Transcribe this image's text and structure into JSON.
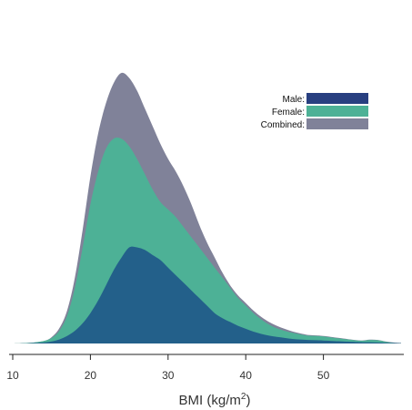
{
  "chart_data": {
    "type": "area",
    "xlabel": "BMI (kg/m",
    "xlabel_sup": "2",
    "xlabel_close": ")",
    "xlim": [
      10,
      60
    ],
    "xticks": [
      "10",
      "20",
      "30",
      "40",
      "50"
    ],
    "legend_position": "top-right",
    "x": [
      10,
      12,
      14,
      15,
      16,
      17,
      18,
      19,
      20,
      21,
      22,
      23,
      24,
      25,
      26,
      27,
      28,
      29,
      30,
      31,
      32,
      33,
      34,
      35,
      36,
      37,
      38,
      39,
      40,
      41,
      42,
      43,
      44,
      45,
      46,
      47,
      48,
      49,
      50,
      52,
      54,
      55,
      56,
      57,
      58,
      59,
      60
    ],
    "series": [
      {
        "name": "Combined",
        "color": "#808299",
        "values": [
          0,
          0.002,
          0.01,
          0.025,
          0.06,
          0.13,
          0.26,
          0.45,
          0.66,
          0.83,
          0.95,
          1.03,
          1.07,
          1.05,
          1.0,
          0.93,
          0.86,
          0.79,
          0.73,
          0.68,
          0.62,
          0.55,
          0.47,
          0.4,
          0.34,
          0.28,
          0.23,
          0.19,
          0.16,
          0.13,
          0.105,
          0.085,
          0.07,
          0.058,
          0.048,
          0.04,
          0.034,
          0.032,
          0.03,
          0.022,
          0.014,
          0.012,
          0.015,
          0.014,
          0.008,
          0.004,
          0.002
        ]
      },
      {
        "name": "Female",
        "color": "#4DB196",
        "values": [
          0,
          0.002,
          0.01,
          0.022,
          0.05,
          0.11,
          0.22,
          0.38,
          0.55,
          0.68,
          0.77,
          0.81,
          0.81,
          0.78,
          0.73,
          0.67,
          0.61,
          0.56,
          0.53,
          0.5,
          0.46,
          0.42,
          0.38,
          0.34,
          0.3,
          0.26,
          0.22,
          0.18,
          0.15,
          0.12,
          0.095,
          0.075,
          0.06,
          0.05,
          0.042,
          0.036,
          0.031,
          0.03,
          0.028,
          0.02,
          0.013,
          0.011,
          0.014,
          0.013,
          0.007,
          0.003,
          0.001
        ]
      },
      {
        "name": "Male",
        "color": "#23608A",
        "values": [
          0,
          0.001,
          0.004,
          0.008,
          0.016,
          0.03,
          0.05,
          0.08,
          0.12,
          0.17,
          0.23,
          0.29,
          0.34,
          0.38,
          0.38,
          0.37,
          0.35,
          0.33,
          0.3,
          0.27,
          0.24,
          0.21,
          0.18,
          0.15,
          0.12,
          0.1,
          0.085,
          0.07,
          0.058,
          0.047,
          0.038,
          0.031,
          0.026,
          0.022,
          0.018,
          0.016,
          0.014,
          0.013,
          0.012,
          0.009,
          0.006,
          0.005,
          0.005,
          0.004,
          0.003,
          0.002,
          0.001
        ]
      }
    ]
  },
  "legend": {
    "items": [
      {
        "label": "Male:",
        "color": "#283F80"
      },
      {
        "label": "Female:",
        "color": "#4DB196"
      },
      {
        "label": "Combined:",
        "color": "#808299"
      }
    ]
  }
}
